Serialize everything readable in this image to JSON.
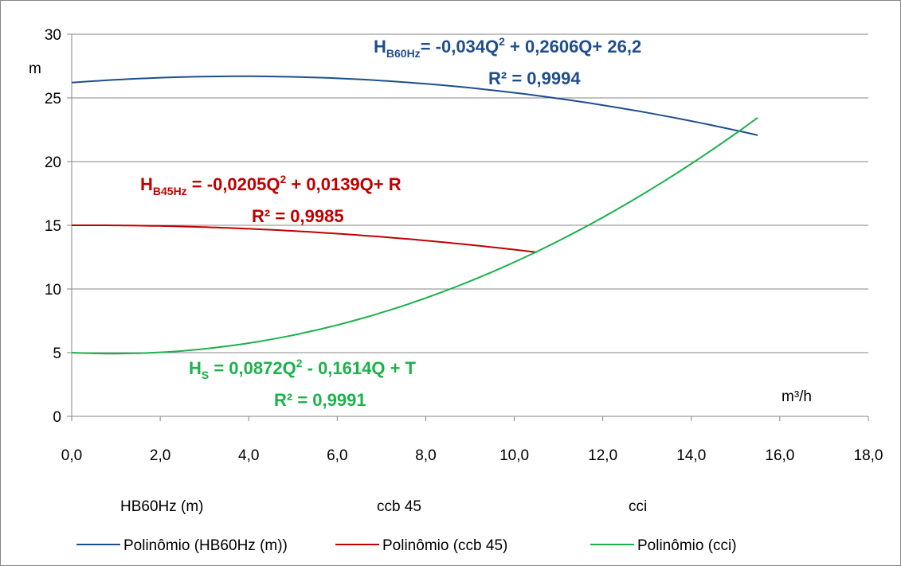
{
  "chart_data": {
    "type": "line",
    "y_unit": "m",
    "x_unit": "m³/h",
    "xlim": [
      0,
      18
    ],
    "ylim": [
      0,
      30
    ],
    "grid": true,
    "x_ticks": [
      "0,0",
      "2,0",
      "4,0",
      "6,0",
      "8,0",
      "10,0",
      "12,0",
      "14,0",
      "16,0",
      "18,0"
    ],
    "y_ticks": [
      "0",
      "5",
      "10",
      "15",
      "20",
      "25",
      "30"
    ],
    "series": [
      {
        "name": "Polinômio (HB60Hz (m))",
        "color": "#1f4e8c",
        "a": -0.034,
        "b": 0.2606,
        "c": 26.2,
        "x_start": 0,
        "x_end": 15.5
      },
      {
        "name": "Polinômio (ccb 45)",
        "color": "#c00000",
        "a": -0.0205,
        "b": 0.0139,
        "c": 15.0,
        "x_start": 0,
        "x_end": 10.5
      },
      {
        "name": "Polinômio (cci)",
        "color": "#1bb24a",
        "a": 0.0872,
        "b": -0.1614,
        "c": 5.0,
        "x_start": 0,
        "x_end": 15.5
      }
    ],
    "legend_top": [
      "HB60Hz (m)",
      "ccb 45",
      "cci"
    ],
    "legend_placement": "bottom",
    "annotations": [
      {
        "id": "hb60",
        "color": "#1f4e8c",
        "eq_prefix": "H",
        "eq_sub": "B60Hz",
        "eq_mid": "= -0,034Q",
        "eq_sup": "2",
        "eq_tail": " + 0,2606Q+ 26,2",
        "r2": "R² = 0,9994"
      },
      {
        "id": "hb45",
        "color": "#c00000",
        "eq_prefix": "H",
        "eq_sub": "B45Hz",
        "eq_mid": " = -0,0205Q",
        "eq_sup": "2",
        "eq_tail": " + 0,0139Q+ R",
        "r2": "R² = 0,9985"
      },
      {
        "id": "hs",
        "color": "#1bb24a",
        "eq_prefix": "H",
        "eq_sub": "S",
        "eq_mid": " = 0,0872Q",
        "eq_sup": "2",
        "eq_tail": " - 0,1614Q + T",
        "r2": "R² = 0,9991"
      }
    ]
  }
}
